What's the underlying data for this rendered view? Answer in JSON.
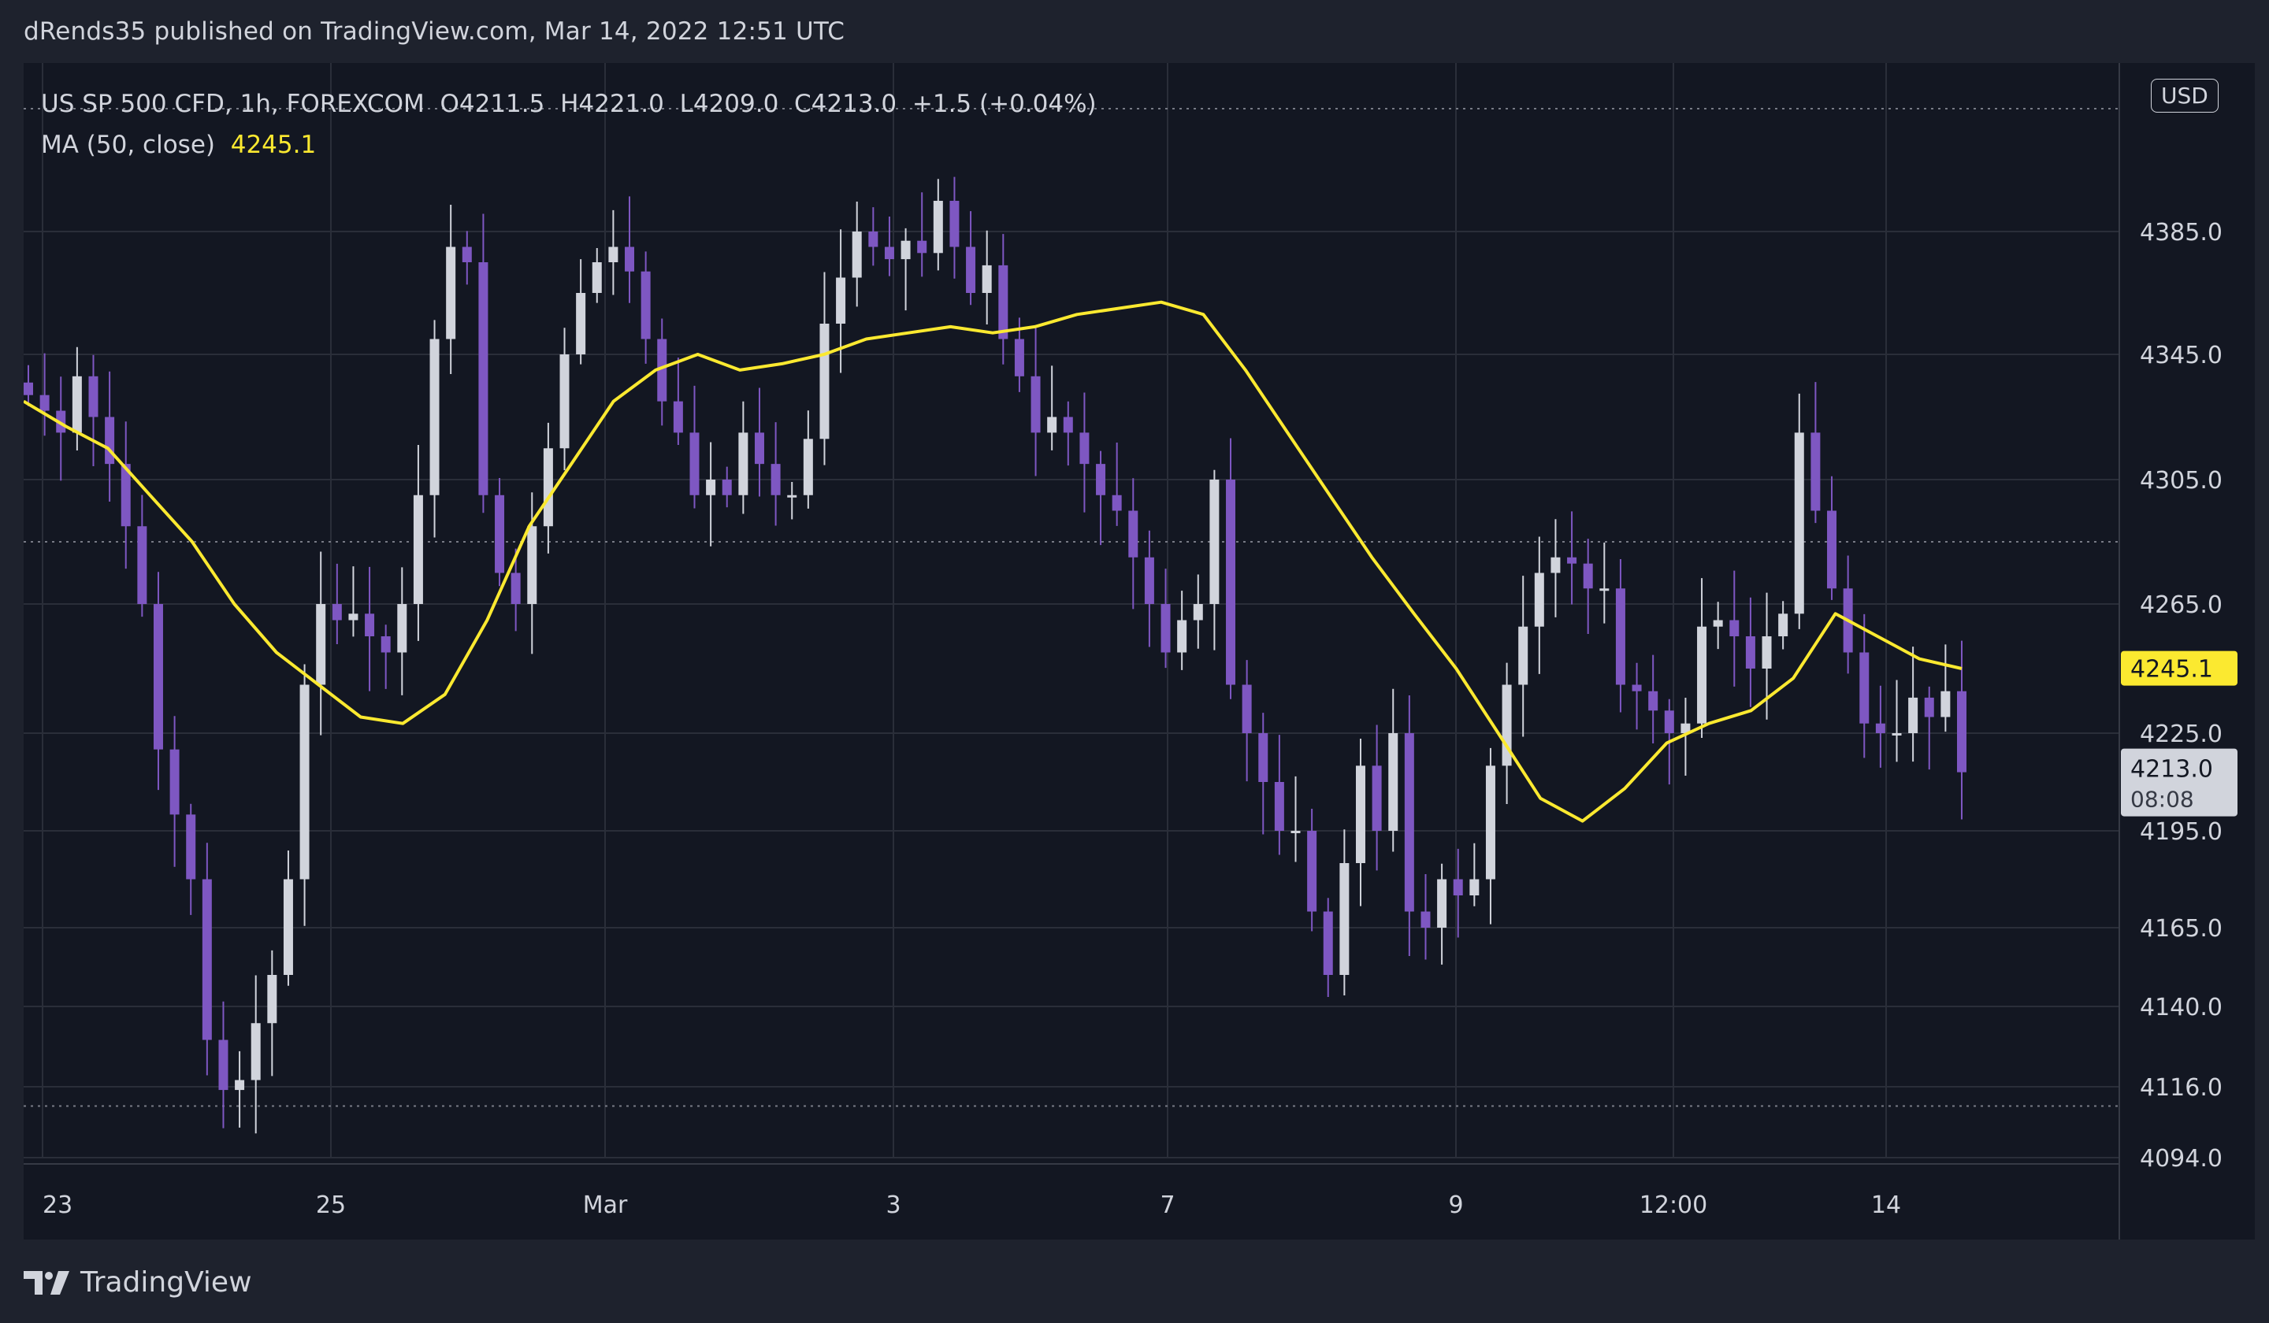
{
  "publisher_line": "dRends35 published on TradingView.com, Mar 14, 2022 12:51 UTC",
  "brand": "TradingView",
  "legend": {
    "symbol": "US SP 500 CFD, 1h, FOREXCOM",
    "open": "O4211.5",
    "high": "H4221.0",
    "low": "L4209.0",
    "close": "C4213.0",
    "change": "+1.5 (+0.04%)",
    "ma_label": "MA (50, close)",
    "ma_value": "4245.1"
  },
  "currency_button": "USD",
  "colors": {
    "background": "#131722",
    "grid": "#2a2e39",
    "bull_candle": "#d1d4dc",
    "bear_candle": "#7e57c2",
    "ma_line": "#fbe930",
    "text": "#d1d4dc"
  },
  "chart_data": {
    "type": "candlestick",
    "timeframe": "1h",
    "y_axis_ticks": [
      4385.0,
      4345.0,
      4305.0,
      4265.0,
      4225.0,
      4195.0,
      4165.0,
      4140.0,
      4116.0,
      4094.0
    ],
    "y_axis_tick_labels": [
      "4385.0",
      "4345.0",
      "4305.0",
      "4265.0",
      "4225.0",
      "4195.0",
      "4165.0",
      "4140.0",
      "4116.0",
      "4094.0"
    ],
    "x_axis_labels": [
      "23",
      "25",
      "Mar",
      "3",
      "7",
      "9",
      "12:00",
      "14"
    ],
    "ylim": [
      4090,
      4430
    ],
    "price_lines": [
      4425,
      4285,
      4110
    ],
    "last_price": {
      "value": 4213.0,
      "label": "4213.0",
      "countdown": "08:08"
    },
    "ma": {
      "period": 50,
      "source": "close",
      "value": 4245.1,
      "label": "4245.1"
    },
    "close_path": [
      4332,
      4327,
      4320,
      4338,
      4325,
      4310,
      4290,
      4265,
      4220,
      4200,
      4180,
      4130,
      4115,
      4118,
      4135,
      4150,
      4180,
      4240,
      4265,
      4260,
      4262,
      4255,
      4250,
      4265,
      4300,
      4350,
      4380,
      4375,
      4300,
      4275,
      4265,
      4290,
      4315,
      4345,
      4365,
      4375,
      4380,
      4372,
      4350,
      4330,
      4320,
      4300,
      4305,
      4300,
      4320,
      4310,
      4300,
      4300,
      4318,
      4355,
      4370,
      4385,
      4380,
      4376,
      4382,
      4378,
      4395,
      4380,
      4365,
      4374,
      4350,
      4338,
      4320,
      4325,
      4320,
      4310,
      4300,
      4295,
      4280,
      4265,
      4250,
      4260,
      4265,
      4305,
      4240,
      4225,
      4210,
      4195,
      4195,
      4170,
      4150,
      4185,
      4215,
      4195,
      4225,
      4170,
      4165,
      4180,
      4175,
      4180,
      4215,
      4240,
      4258,
      4275,
      4280,
      4278,
      4270,
      4270,
      4240,
      4238,
      4232,
      4225,
      4228,
      4258,
      4260,
      4255,
      4245,
      4255,
      4262,
      4320,
      4295,
      4270,
      4250,
      4228,
      4225,
      4225,
      4236,
      4230,
      4238,
      4213
    ],
    "ma_path": [
      4330,
      4322,
      4315,
      4300,
      4285,
      4265,
      4250,
      4240,
      4230,
      4228,
      4237,
      4260,
      4290,
      4310,
      4330,
      4340,
      4345,
      4340,
      4342,
      4345,
      4350,
      4352,
      4354,
      4352,
      4354,
      4358,
      4360,
      4362,
      4358,
      4340,
      4320,
      4300,
      4280,
      4262,
      4245,
      4225,
      4205,
      4198,
      4208,
      4222,
      4228,
      4232,
      4242,
      4262,
      4255,
      4248,
      4245
    ]
  }
}
